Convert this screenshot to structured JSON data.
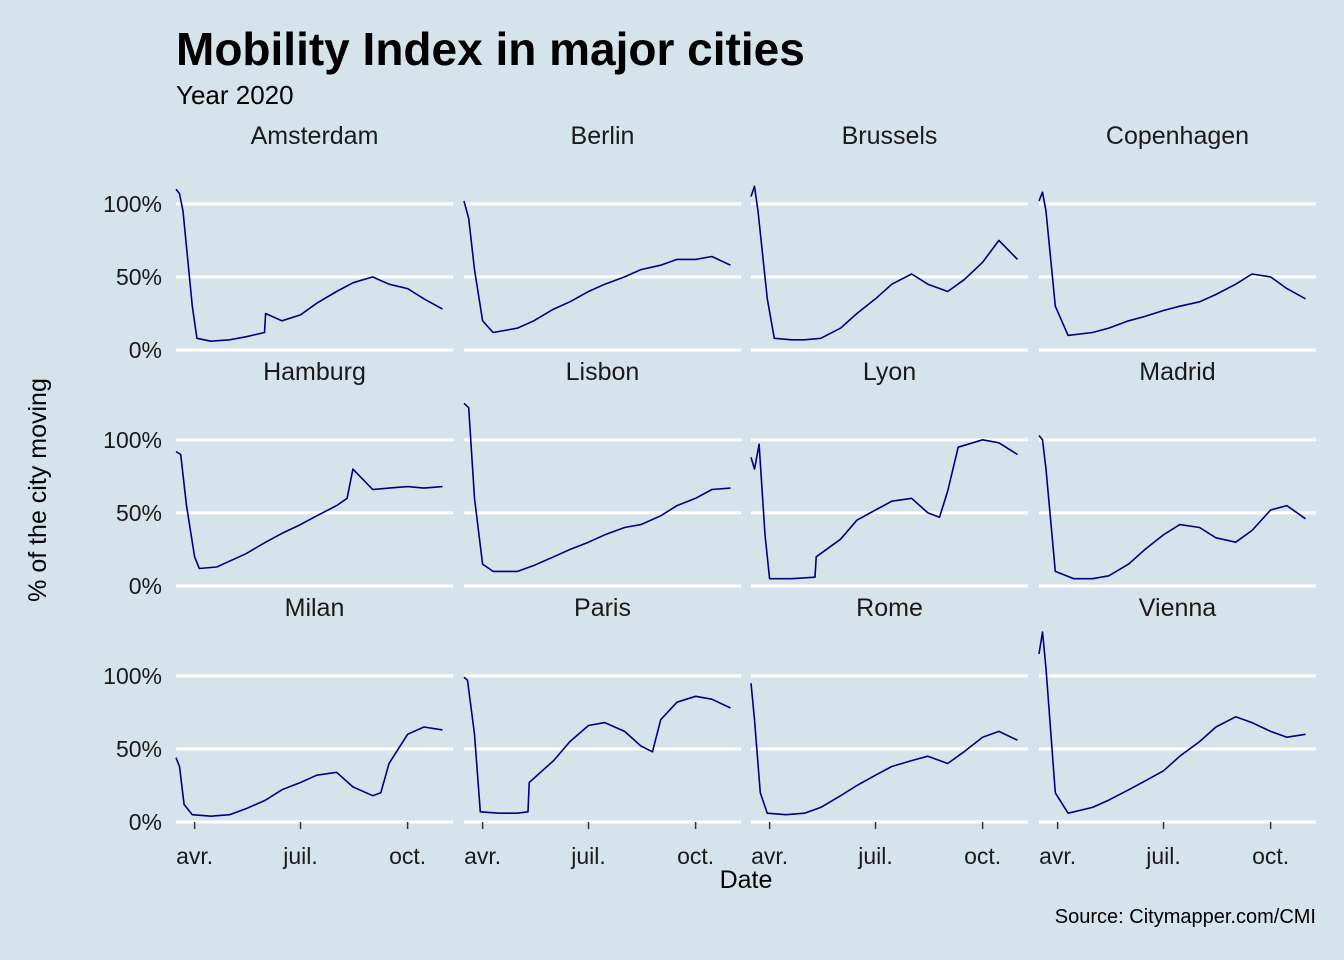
{
  "chart_data": {
    "type": "line",
    "title": "Mobility Index in major cities",
    "subtitle": "Year 2020",
    "xlabel": "Date",
    "ylabel": "% of the city moving",
    "caption": "Source: Citymapper.com/CMI",
    "ylim": [
      0,
      1.3
    ],
    "y_ticks": [
      0,
      0.5,
      1.0
    ],
    "y_tick_labels": [
      "0%",
      "50%",
      "100%"
    ],
    "x_ticks": [
      "2020-04-01",
      "2020-07-01",
      "2020-10-01"
    ],
    "x_tick_labels": [
      "avr.",
      "juil.",
      "oct."
    ],
    "xlim": [
      "2020-03-16",
      "2020-11-09"
    ],
    "grid": true,
    "facets": [
      "Amsterdam",
      "Berlin",
      "Brussels",
      "Copenhagen",
      "Hamburg",
      "Lisbon",
      "Lyon",
      "Madrid",
      "Milan",
      "Paris",
      "Rome",
      "Vienna"
    ],
    "series_color": "#000080",
    "series": [
      {
        "name": "Amsterdam",
        "x": [
          "2020-03-16",
          "2020-03-19",
          "2020-03-22",
          "2020-03-30",
          "2020-04-03",
          "2020-04-15",
          "2020-05-01",
          "2020-05-15",
          "2020-05-31",
          "2020-06-01",
          "2020-06-15",
          "2020-07-01",
          "2020-07-15",
          "2020-08-01",
          "2020-08-15",
          "2020-09-01",
          "2020-09-15",
          "2020-10-01",
          "2020-10-15",
          "2020-10-31"
        ],
        "values": [
          1.1,
          1.07,
          0.95,
          0.3,
          0.08,
          0.06,
          0.07,
          0.09,
          0.12,
          0.25,
          0.2,
          0.24,
          0.32,
          0.4,
          0.46,
          0.5,
          0.45,
          0.42,
          0.35,
          0.28
        ]
      },
      {
        "name": "Berlin",
        "x": [
          "2020-03-16",
          "2020-03-20",
          "2020-03-25",
          "2020-04-01",
          "2020-04-10",
          "2020-05-01",
          "2020-05-15",
          "2020-06-01",
          "2020-06-15",
          "2020-07-01",
          "2020-07-15",
          "2020-08-01",
          "2020-08-15",
          "2020-09-01",
          "2020-09-15",
          "2020-10-01",
          "2020-10-15",
          "2020-10-31"
        ],
        "values": [
          1.02,
          0.9,
          0.55,
          0.2,
          0.12,
          0.15,
          0.2,
          0.28,
          0.33,
          0.4,
          0.45,
          0.5,
          0.55,
          0.58,
          0.62,
          0.62,
          0.64,
          0.58
        ]
      },
      {
        "name": "Brussels",
        "x": [
          "2020-03-16",
          "2020-03-19",
          "2020-03-22",
          "2020-03-30",
          "2020-04-05",
          "2020-04-20",
          "2020-05-01",
          "2020-05-15",
          "2020-06-01",
          "2020-06-15",
          "2020-07-01",
          "2020-07-15",
          "2020-08-01",
          "2020-08-15",
          "2020-09-01",
          "2020-09-15",
          "2020-10-01",
          "2020-10-15",
          "2020-10-31"
        ],
        "values": [
          1.05,
          1.12,
          0.95,
          0.35,
          0.08,
          0.07,
          0.07,
          0.08,
          0.15,
          0.25,
          0.35,
          0.45,
          0.52,
          0.45,
          0.4,
          0.48,
          0.6,
          0.75,
          0.62
        ]
      },
      {
        "name": "Copenhagen",
        "x": [
          "2020-03-16",
          "2020-03-19",
          "2020-03-22",
          "2020-03-30",
          "2020-04-10",
          "2020-05-01",
          "2020-05-15",
          "2020-06-01",
          "2020-06-15",
          "2020-07-01",
          "2020-07-15",
          "2020-08-01",
          "2020-08-15",
          "2020-09-01",
          "2020-09-15",
          "2020-10-01",
          "2020-10-15",
          "2020-10-31"
        ],
        "values": [
          1.02,
          1.08,
          0.95,
          0.3,
          0.1,
          0.12,
          0.15,
          0.2,
          0.23,
          0.27,
          0.3,
          0.33,
          0.38,
          0.45,
          0.52,
          0.5,
          0.42,
          0.35
        ]
      },
      {
        "name": "Hamburg",
        "x": [
          "2020-03-16",
          "2020-03-20",
          "2020-03-25",
          "2020-04-01",
          "2020-04-05",
          "2020-04-20",
          "2020-05-01",
          "2020-05-15",
          "2020-06-01",
          "2020-06-15",
          "2020-07-01",
          "2020-07-15",
          "2020-08-01",
          "2020-08-10",
          "2020-08-15",
          "2020-09-01",
          "2020-09-15",
          "2020-10-01",
          "2020-10-15",
          "2020-10-31"
        ],
        "values": [
          0.92,
          0.9,
          0.55,
          0.2,
          0.12,
          0.13,
          0.17,
          0.22,
          0.3,
          0.36,
          0.42,
          0.48,
          0.55,
          0.6,
          0.8,
          0.66,
          0.67,
          0.68,
          0.67,
          0.68
        ]
      },
      {
        "name": "Lisbon",
        "x": [
          "2020-03-16",
          "2020-03-20",
          "2020-03-25",
          "2020-04-01",
          "2020-04-10",
          "2020-05-01",
          "2020-05-15",
          "2020-06-01",
          "2020-06-15",
          "2020-07-01",
          "2020-07-15",
          "2020-08-01",
          "2020-08-15",
          "2020-09-01",
          "2020-09-15",
          "2020-10-01",
          "2020-10-15",
          "2020-10-31"
        ],
        "values": [
          1.25,
          1.22,
          0.6,
          0.15,
          0.1,
          0.1,
          0.14,
          0.2,
          0.25,
          0.3,
          0.35,
          0.4,
          0.42,
          0.48,
          0.55,
          0.6,
          0.66,
          0.67
        ]
      },
      {
        "name": "Lyon",
        "x": [
          "2020-03-16",
          "2020-03-19",
          "2020-03-23",
          "2020-03-28",
          "2020-04-01",
          "2020-04-20",
          "2020-05-10",
          "2020-05-11",
          "2020-06-01",
          "2020-06-15",
          "2020-07-01",
          "2020-07-15",
          "2020-08-01",
          "2020-08-15",
          "2020-08-25",
          "2020-09-01",
          "2020-09-10",
          "2020-10-01",
          "2020-10-15",
          "2020-10-31"
        ],
        "values": [
          0.88,
          0.8,
          0.97,
          0.35,
          0.05,
          0.05,
          0.06,
          0.2,
          0.32,
          0.45,
          0.52,
          0.58,
          0.6,
          0.5,
          0.47,
          0.65,
          0.95,
          1.0,
          0.98,
          0.9
        ]
      },
      {
        "name": "Madrid",
        "x": [
          "2020-03-16",
          "2020-03-19",
          "2020-03-22",
          "2020-03-30",
          "2020-04-15",
          "2020-05-01",
          "2020-05-15",
          "2020-06-01",
          "2020-06-15",
          "2020-07-01",
          "2020-07-15",
          "2020-08-01",
          "2020-08-15",
          "2020-09-01",
          "2020-09-15",
          "2020-10-01",
          "2020-10-15",
          "2020-10-31"
        ],
        "values": [
          1.03,
          1.0,
          0.8,
          0.1,
          0.05,
          0.05,
          0.07,
          0.15,
          0.25,
          0.35,
          0.42,
          0.4,
          0.33,
          0.3,
          0.38,
          0.52,
          0.55,
          0.46
        ]
      },
      {
        "name": "Milan",
        "x": [
          "2020-03-16",
          "2020-03-19",
          "2020-03-23",
          "2020-03-30",
          "2020-04-15",
          "2020-05-01",
          "2020-05-15",
          "2020-06-01",
          "2020-06-15",
          "2020-07-01",
          "2020-07-15",
          "2020-08-01",
          "2020-08-15",
          "2020-09-01",
          "2020-09-08",
          "2020-09-15",
          "2020-10-01",
          "2020-10-15",
          "2020-10-31"
        ],
        "values": [
          0.44,
          0.38,
          0.12,
          0.05,
          0.04,
          0.05,
          0.09,
          0.15,
          0.22,
          0.27,
          0.32,
          0.34,
          0.24,
          0.18,
          0.2,
          0.4,
          0.6,
          0.65,
          0.63
        ]
      },
      {
        "name": "Paris",
        "x": [
          "2020-03-16",
          "2020-03-19",
          "2020-03-25",
          "2020-03-30",
          "2020-04-15",
          "2020-05-01",
          "2020-05-10",
          "2020-05-11",
          "2020-06-01",
          "2020-06-15",
          "2020-07-01",
          "2020-07-15",
          "2020-08-01",
          "2020-08-15",
          "2020-08-25",
          "2020-09-01",
          "2020-09-15",
          "2020-10-01",
          "2020-10-15",
          "2020-10-31"
        ],
        "values": [
          0.99,
          0.97,
          0.6,
          0.07,
          0.06,
          0.06,
          0.07,
          0.27,
          0.42,
          0.55,
          0.66,
          0.68,
          0.62,
          0.52,
          0.48,
          0.7,
          0.82,
          0.86,
          0.84,
          0.78
        ]
      },
      {
        "name": "Rome",
        "x": [
          "2020-03-16",
          "2020-03-19",
          "2020-03-24",
          "2020-03-30",
          "2020-04-15",
          "2020-05-01",
          "2020-05-15",
          "2020-06-01",
          "2020-06-15",
          "2020-07-01",
          "2020-07-15",
          "2020-08-01",
          "2020-08-15",
          "2020-09-01",
          "2020-09-15",
          "2020-10-01",
          "2020-10-15",
          "2020-10-31"
        ],
        "values": [
          0.95,
          0.7,
          0.2,
          0.06,
          0.05,
          0.06,
          0.1,
          0.18,
          0.25,
          0.32,
          0.38,
          0.42,
          0.45,
          0.4,
          0.48,
          0.58,
          0.62,
          0.56
        ]
      },
      {
        "name": "Vienna",
        "x": [
          "2020-03-16",
          "2020-03-19",
          "2020-03-22",
          "2020-03-30",
          "2020-04-10",
          "2020-05-01",
          "2020-05-15",
          "2020-06-01",
          "2020-06-15",
          "2020-07-01",
          "2020-07-15",
          "2020-08-01",
          "2020-08-15",
          "2020-09-01",
          "2020-09-15",
          "2020-10-01",
          "2020-10-15",
          "2020-10-31"
        ],
        "values": [
          1.15,
          1.3,
          1.05,
          0.2,
          0.06,
          0.1,
          0.15,
          0.22,
          0.28,
          0.35,
          0.45,
          0.55,
          0.65,
          0.72,
          0.68,
          0.62,
          0.58,
          0.6
        ]
      }
    ]
  }
}
